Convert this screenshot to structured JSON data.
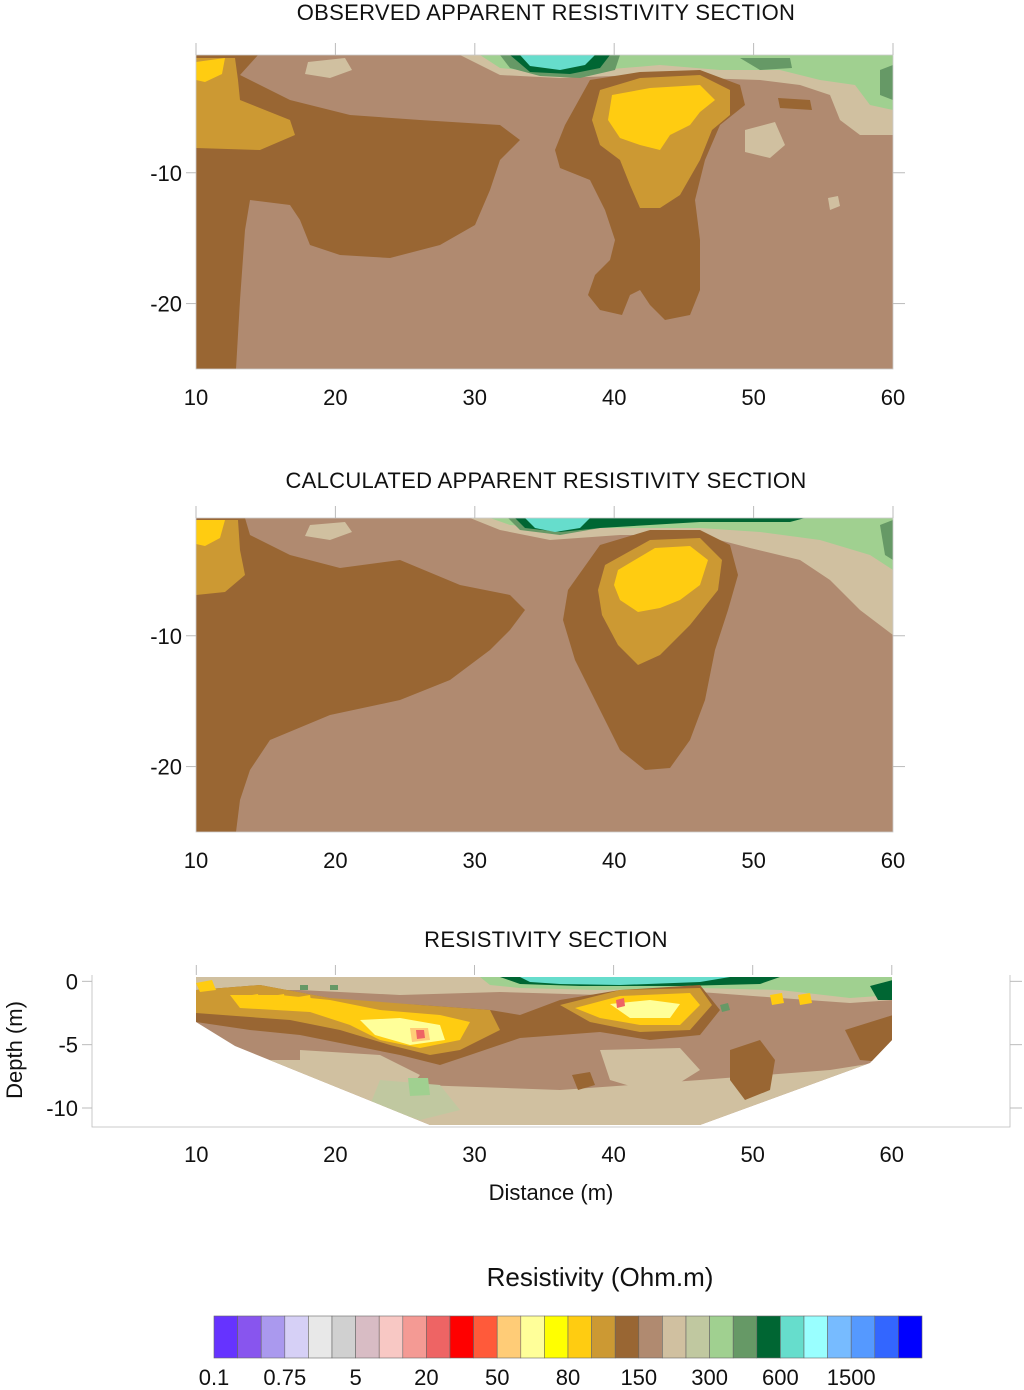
{
  "chart_data": [
    {
      "type": "heatmap",
      "title": "OBSERVED APPARENT RESISTIVITY SECTION",
      "xlabel": "",
      "ylabel": "",
      "xlim": [
        10,
        60
      ],
      "ylim": [
        -25,
        -1
      ],
      "x_ticks": [
        "10",
        "20",
        "30",
        "40",
        "50",
        "60"
      ],
      "y_ticks": [
        "-10",
        "-20"
      ],
      "grid": false
    },
    {
      "type": "heatmap",
      "title": "CALCULATED APPARENT RESISTIVITY SECTION",
      "xlabel": "",
      "ylabel": "",
      "xlim": [
        10,
        60
      ],
      "ylim": [
        -25,
        -1
      ],
      "x_ticks": [
        "10",
        "20",
        "30",
        "40",
        "50",
        "60"
      ],
      "y_ticks": [
        "-10",
        "-20"
      ],
      "grid": false
    },
    {
      "type": "heatmap",
      "title": "RESISTIVITY SECTION",
      "xlabel": "Distance (m)",
      "ylabel": "Depth (m)",
      "xlim": [
        2.5,
        68.5
      ],
      "ylim": [
        -11.5,
        0.5
      ],
      "x_ticks": [
        "10",
        "20",
        "30",
        "40",
        "50",
        "60"
      ],
      "y_ticks": [
        "0",
        "-5",
        "-10"
      ],
      "grid": false
    }
  ],
  "legend": {
    "title": "Resistivity (Ohm.m)",
    "colors": [
      "#6633ff",
      "#8855ee",
      "#aa99ee",
      "#d6d0f6",
      "#e8e8e8",
      "#d0d0d0",
      "#d8bcc4",
      "#f8c8c4",
      "#f49a94",
      "#ee6464",
      "#ff0000",
      "#ff5a3a",
      "#ffcc77",
      "#ffff99",
      "#ffff00",
      "#ffcc11",
      "#cc9933",
      "#996633",
      "#b08a70",
      "#d0c0a0",
      "#c0c8a0",
      "#a0d090",
      "#669966",
      "#006633",
      "#66ddcc",
      "#99ffff",
      "#77bbff",
      "#5599ff",
      "#3366ff",
      "#0000ff"
    ],
    "labels": [
      "0.1",
      "0.75",
      "5",
      "20",
      "50",
      "80",
      "150",
      "300",
      "600",
      "1500"
    ]
  }
}
